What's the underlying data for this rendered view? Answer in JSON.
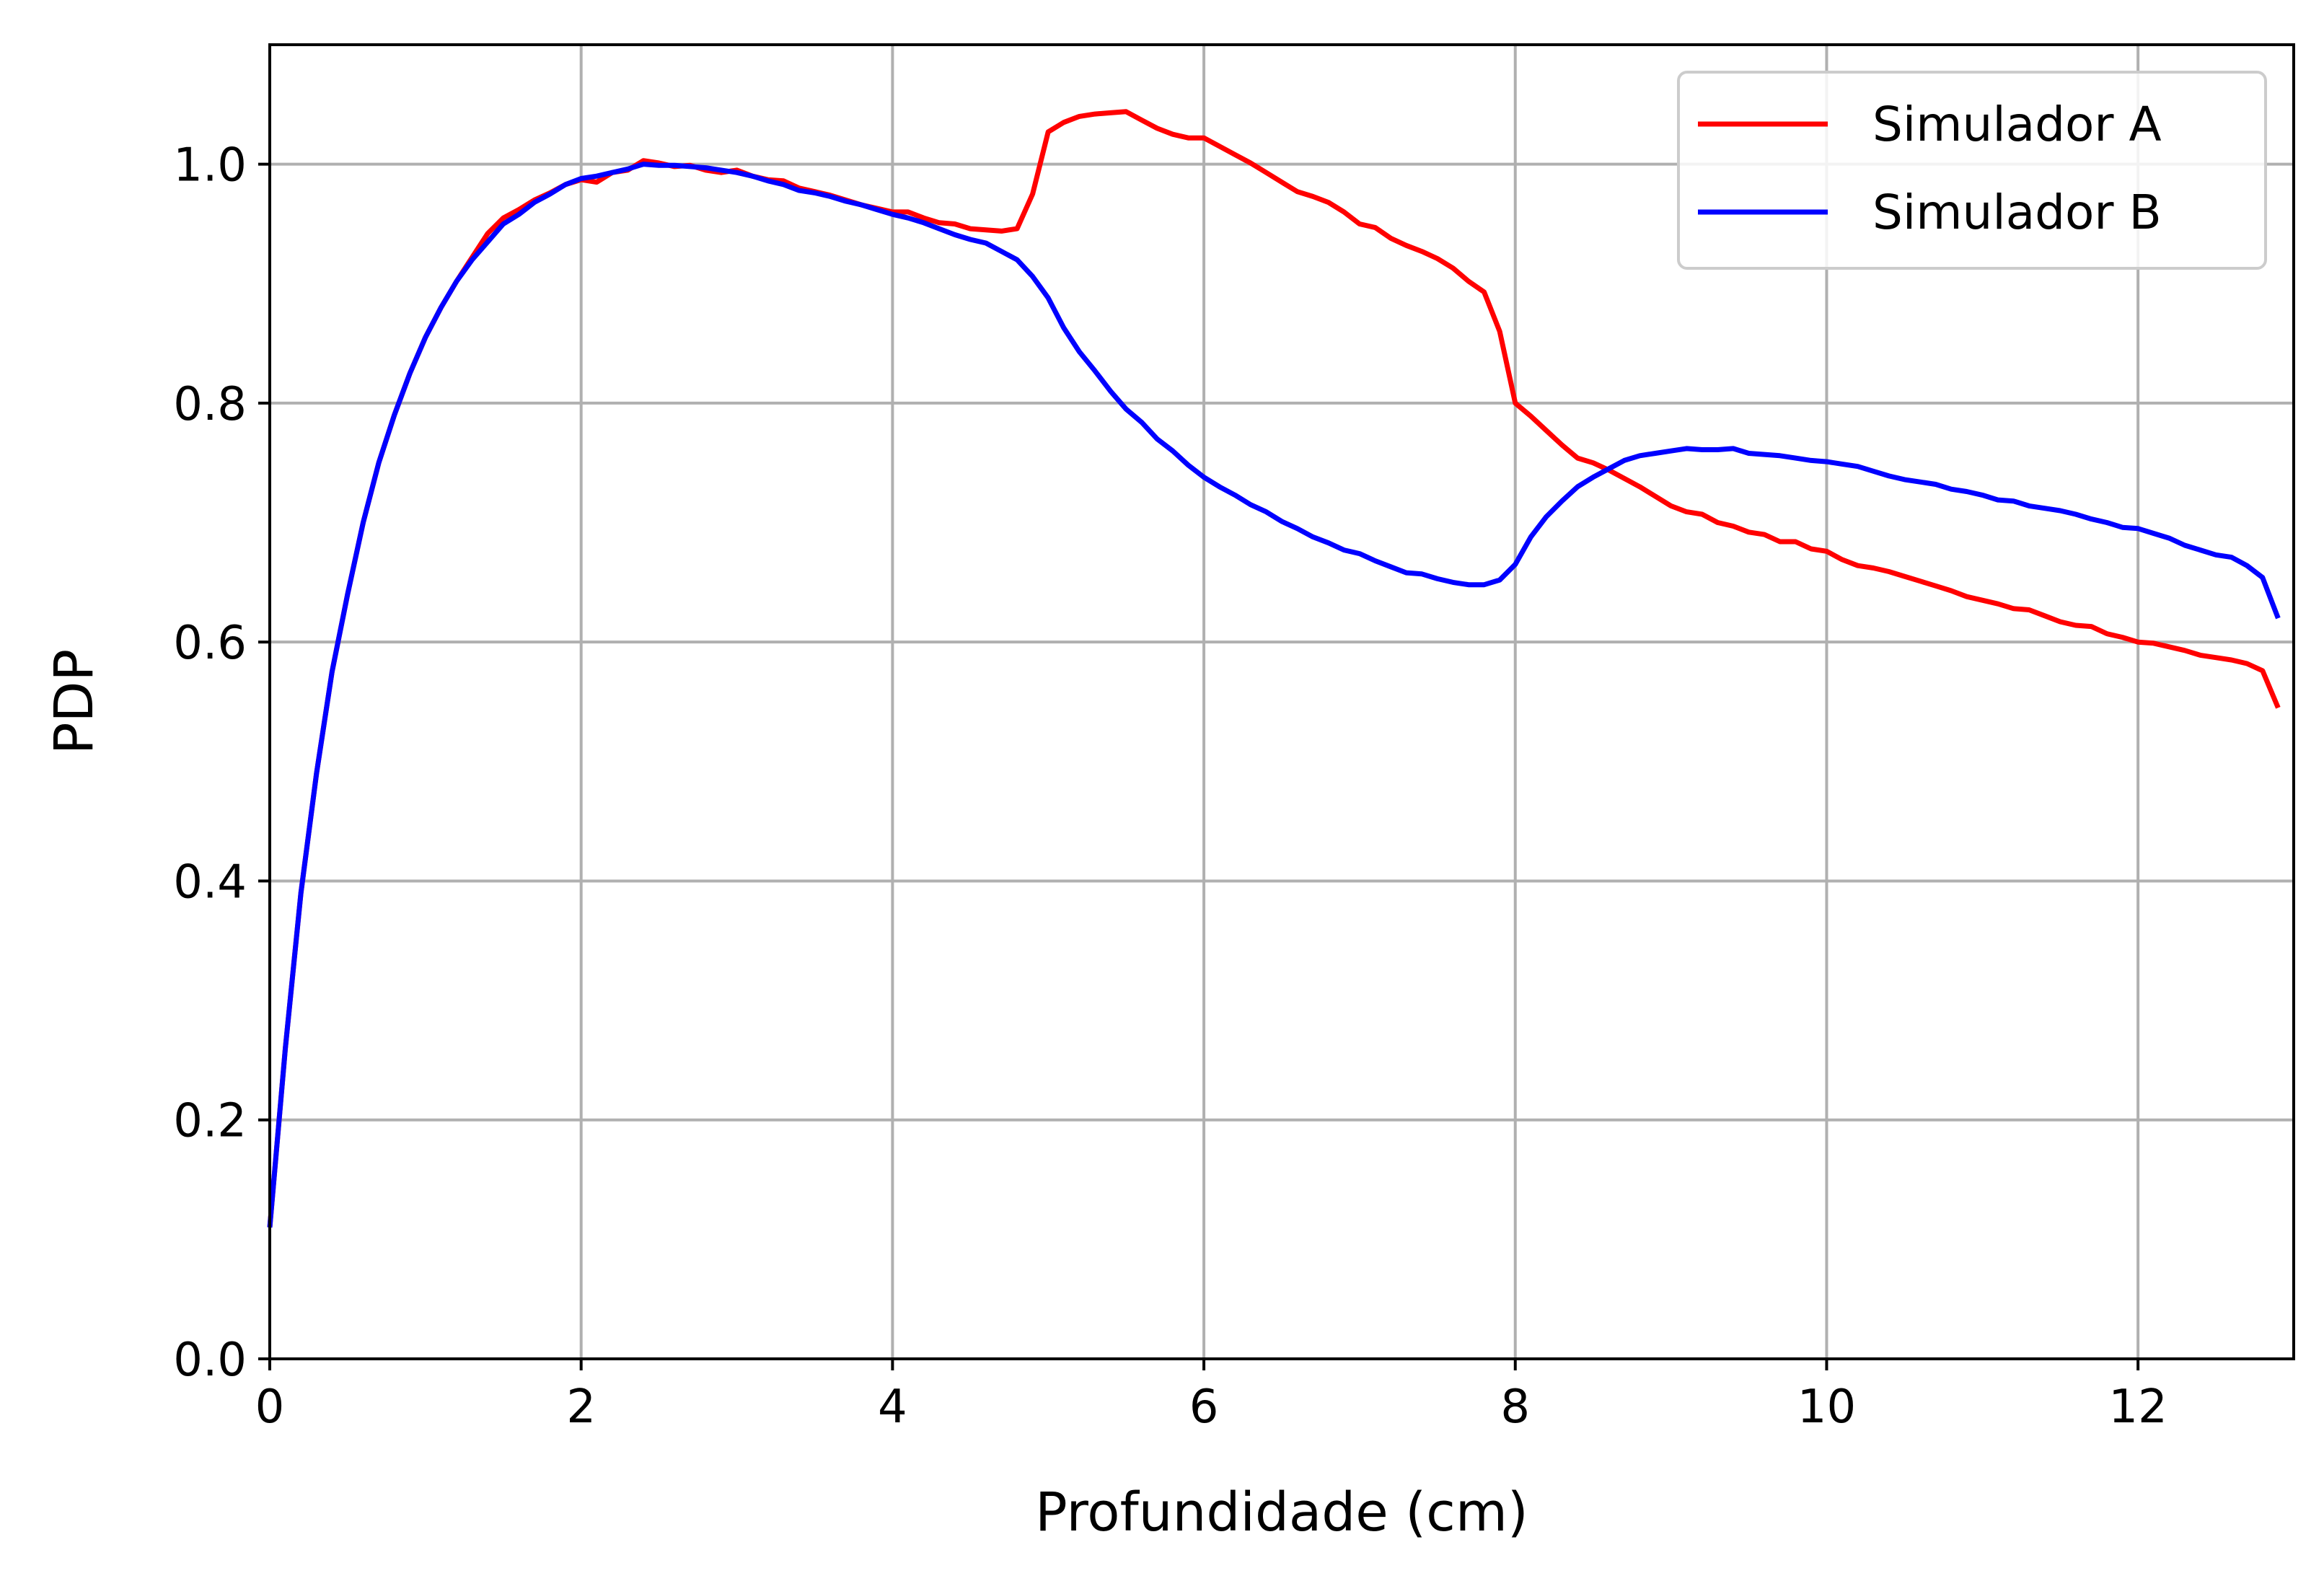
{
  "chart_data": {
    "type": "line",
    "title": "",
    "xlabel": "Profundidade (cm)",
    "ylabel": "PDP",
    "xlim": [
      0,
      13
    ],
    "ylim": [
      0,
      1.1
    ],
    "x_ticks": [
      0,
      2,
      4,
      6,
      8,
      10,
      12
    ],
    "x_tick_labels": [
      "0",
      "2",
      "4",
      "6",
      "8",
      "10",
      "12"
    ],
    "y_ticks": [
      0.0,
      0.2,
      0.4,
      0.6,
      0.8,
      1.0
    ],
    "y_tick_labels": [
      "0.0",
      "0.2",
      "0.4",
      "0.6",
      "0.8",
      "1.0"
    ],
    "grid": true,
    "legend_position": "top-right",
    "series": [
      {
        "name": "Simulador A",
        "color": "#ff0000",
        "points": [
          [
            0.0,
            0.11
          ],
          [
            0.1,
            0.26
          ],
          [
            0.2,
            0.39
          ],
          [
            0.3,
            0.49
          ],
          [
            0.4,
            0.575
          ],
          [
            0.5,
            0.64
          ],
          [
            0.6,
            0.7
          ],
          [
            0.7,
            0.75
          ],
          [
            0.8,
            0.79
          ],
          [
            0.9,
            0.825
          ],
          [
            1.0,
            0.855
          ],
          [
            1.1,
            0.88
          ],
          [
            1.2,
            0.902
          ],
          [
            1.3,
            0.922
          ],
          [
            1.4,
            0.942
          ],
          [
            1.5,
            0.955
          ],
          [
            1.6,
            0.962
          ],
          [
            1.7,
            0.97
          ],
          [
            1.8,
            0.976
          ],
          [
            1.9,
            0.983
          ],
          [
            2.0,
            0.987
          ],
          [
            2.1,
            0.985
          ],
          [
            2.2,
            0.993
          ],
          [
            2.3,
            0.995
          ],
          [
            2.4,
            1.003
          ],
          [
            2.5,
            1.001
          ],
          [
            2.6,
            0.998
          ],
          [
            2.7,
            0.999
          ],
          [
            2.8,
            0.995
          ],
          [
            2.9,
            0.993
          ],
          [
            3.0,
            0.995
          ],
          [
            3.1,
            0.99
          ],
          [
            3.2,
            0.987
          ],
          [
            3.3,
            0.986
          ],
          [
            3.4,
            0.98
          ],
          [
            3.5,
            0.977
          ],
          [
            3.6,
            0.974
          ],
          [
            3.7,
            0.97
          ],
          [
            3.8,
            0.966
          ],
          [
            3.9,
            0.963
          ],
          [
            4.0,
            0.96
          ],
          [
            4.1,
            0.96
          ],
          [
            4.2,
            0.955
          ],
          [
            4.3,
            0.951
          ],
          [
            4.4,
            0.95
          ],
          [
            4.5,
            0.946
          ],
          [
            4.6,
            0.945
          ],
          [
            4.7,
            0.944
          ],
          [
            4.8,
            0.946
          ],
          [
            4.9,
            0.975
          ],
          [
            5.0,
            1.027
          ],
          [
            5.1,
            1.035
          ],
          [
            5.2,
            1.04
          ],
          [
            5.3,
            1.042
          ],
          [
            5.4,
            1.043
          ],
          [
            5.5,
            1.044
          ],
          [
            5.6,
            1.037
          ],
          [
            5.7,
            1.03
          ],
          [
            5.8,
            1.025
          ],
          [
            5.9,
            1.022
          ],
          [
            6.0,
            1.022
          ],
          [
            6.1,
            1.015
          ],
          [
            6.2,
            1.008
          ],
          [
            6.3,
            1.001
          ],
          [
            6.4,
            0.993
          ],
          [
            6.5,
            0.985
          ],
          [
            6.6,
            0.977
          ],
          [
            6.7,
            0.973
          ],
          [
            6.8,
            0.968
          ],
          [
            6.9,
            0.96
          ],
          [
            7.0,
            0.95
          ],
          [
            7.1,
            0.947
          ],
          [
            7.2,
            0.938
          ],
          [
            7.3,
            0.932
          ],
          [
            7.4,
            0.927
          ],
          [
            7.5,
            0.921
          ],
          [
            7.6,
            0.913
          ],
          [
            7.7,
            0.902
          ],
          [
            7.8,
            0.893
          ],
          [
            7.9,
            0.86
          ],
          [
            8.0,
            0.8
          ],
          [
            8.1,
            0.789
          ],
          [
            8.2,
            0.777
          ],
          [
            8.3,
            0.765
          ],
          [
            8.4,
            0.754
          ],
          [
            8.5,
            0.75
          ],
          [
            8.6,
            0.744
          ],
          [
            8.7,
            0.737
          ],
          [
            8.8,
            0.73
          ],
          [
            8.9,
            0.722
          ],
          [
            9.0,
            0.714
          ],
          [
            9.1,
            0.709
          ],
          [
            9.2,
            0.707
          ],
          [
            9.3,
            0.7
          ],
          [
            9.4,
            0.697
          ],
          [
            9.5,
            0.692
          ],
          [
            9.6,
            0.69
          ],
          [
            9.7,
            0.684
          ],
          [
            9.8,
            0.684
          ],
          [
            9.9,
            0.678
          ],
          [
            10.0,
            0.676
          ],
          [
            10.1,
            0.669
          ],
          [
            10.2,
            0.664
          ],
          [
            10.3,
            0.662
          ],
          [
            10.4,
            0.659
          ],
          [
            10.5,
            0.655
          ],
          [
            10.6,
            0.651
          ],
          [
            10.7,
            0.647
          ],
          [
            10.8,
            0.643
          ],
          [
            10.9,
            0.638
          ],
          [
            11.0,
            0.635
          ],
          [
            11.1,
            0.632
          ],
          [
            11.2,
            0.628
          ],
          [
            11.3,
            0.627
          ],
          [
            11.4,
            0.622
          ],
          [
            11.5,
            0.617
          ],
          [
            11.6,
            0.614
          ],
          [
            11.7,
            0.613
          ],
          [
            11.8,
            0.607
          ],
          [
            11.9,
            0.604
          ],
          [
            12.0,
            0.6
          ],
          [
            12.1,
            0.599
          ],
          [
            12.2,
            0.596
          ],
          [
            12.3,
            0.593
          ],
          [
            12.4,
            0.589
          ],
          [
            12.5,
            0.587
          ],
          [
            12.6,
            0.585
          ],
          [
            12.7,
            0.582
          ],
          [
            12.8,
            0.576
          ],
          [
            12.9,
            0.545
          ]
        ]
      },
      {
        "name": "Simulador B",
        "color": "#0000ff",
        "points": [
          [
            0.0,
            0.11
          ],
          [
            0.1,
            0.26
          ],
          [
            0.2,
            0.39
          ],
          [
            0.3,
            0.49
          ],
          [
            0.4,
            0.575
          ],
          [
            0.5,
            0.64
          ],
          [
            0.6,
            0.7
          ],
          [
            0.7,
            0.75
          ],
          [
            0.8,
            0.79
          ],
          [
            0.9,
            0.825
          ],
          [
            1.0,
            0.855
          ],
          [
            1.1,
            0.88
          ],
          [
            1.2,
            0.902
          ],
          [
            1.3,
            0.92
          ],
          [
            1.4,
            0.935
          ],
          [
            1.5,
            0.95
          ],
          [
            1.6,
            0.958
          ],
          [
            1.7,
            0.968
          ],
          [
            1.8,
            0.975
          ],
          [
            1.9,
            0.983
          ],
          [
            2.0,
            0.988
          ],
          [
            2.1,
            0.99
          ],
          [
            2.2,
            0.993
          ],
          [
            2.3,
            0.996
          ],
          [
            2.4,
            1.0
          ],
          [
            2.5,
            0.999
          ],
          [
            2.6,
            0.999
          ],
          [
            2.7,
            0.998
          ],
          [
            2.8,
            0.997
          ],
          [
            2.9,
            0.995
          ],
          [
            3.0,
            0.993
          ],
          [
            3.1,
            0.99
          ],
          [
            3.2,
            0.986
          ],
          [
            3.3,
            0.983
          ],
          [
            3.4,
            0.978
          ],
          [
            3.5,
            0.976
          ],
          [
            3.6,
            0.973
          ],
          [
            3.7,
            0.969
          ],
          [
            3.8,
            0.966
          ],
          [
            3.9,
            0.962
          ],
          [
            4.0,
            0.958
          ],
          [
            4.1,
            0.955
          ],
          [
            4.2,
            0.951
          ],
          [
            4.3,
            0.946
          ],
          [
            4.4,
            0.941
          ],
          [
            4.5,
            0.937
          ],
          [
            4.6,
            0.934
          ],
          [
            4.7,
            0.927
          ],
          [
            4.8,
            0.92
          ],
          [
            4.9,
            0.906
          ],
          [
            5.0,
            0.888
          ],
          [
            5.1,
            0.863
          ],
          [
            5.2,
            0.843
          ],
          [
            5.3,
            0.827
          ],
          [
            5.4,
            0.81
          ],
          [
            5.5,
            0.795
          ],
          [
            5.6,
            0.784
          ],
          [
            5.7,
            0.77
          ],
          [
            5.8,
            0.76
          ],
          [
            5.9,
            0.748
          ],
          [
            6.0,
            0.738
          ],
          [
            6.1,
            0.73
          ],
          [
            6.2,
            0.723
          ],
          [
            6.3,
            0.715
          ],
          [
            6.4,
            0.709
          ],
          [
            6.5,
            0.701
          ],
          [
            6.6,
            0.695
          ],
          [
            6.7,
            0.688
          ],
          [
            6.8,
            0.683
          ],
          [
            6.9,
            0.677
          ],
          [
            7.0,
            0.674
          ],
          [
            7.1,
            0.668
          ],
          [
            7.2,
            0.663
          ],
          [
            7.3,
            0.658
          ],
          [
            7.4,
            0.657
          ],
          [
            7.5,
            0.653
          ],
          [
            7.6,
            0.65
          ],
          [
            7.7,
            0.648
          ],
          [
            7.8,
            0.648
          ],
          [
            7.9,
            0.652
          ],
          [
            8.0,
            0.665
          ],
          [
            8.1,
            0.688
          ],
          [
            8.2,
            0.705
          ],
          [
            8.3,
            0.718
          ],
          [
            8.4,
            0.73
          ],
          [
            8.5,
            0.738
          ],
          [
            8.6,
            0.745
          ],
          [
            8.7,
            0.752
          ],
          [
            8.8,
            0.756
          ],
          [
            8.9,
            0.758
          ],
          [
            9.0,
            0.76
          ],
          [
            9.1,
            0.762
          ],
          [
            9.2,
            0.761
          ],
          [
            9.3,
            0.761
          ],
          [
            9.4,
            0.762
          ],
          [
            9.5,
            0.758
          ],
          [
            9.6,
            0.757
          ],
          [
            9.7,
            0.756
          ],
          [
            9.8,
            0.754
          ],
          [
            9.9,
            0.752
          ],
          [
            10.0,
            0.751
          ],
          [
            10.1,
            0.749
          ],
          [
            10.2,
            0.747
          ],
          [
            10.3,
            0.743
          ],
          [
            10.4,
            0.739
          ],
          [
            10.5,
            0.736
          ],
          [
            10.6,
            0.734
          ],
          [
            10.7,
            0.732
          ],
          [
            10.8,
            0.728
          ],
          [
            10.9,
            0.726
          ],
          [
            11.0,
            0.723
          ],
          [
            11.1,
            0.719
          ],
          [
            11.2,
            0.718
          ],
          [
            11.3,
            0.714
          ],
          [
            11.4,
            0.712
          ],
          [
            11.5,
            0.71
          ],
          [
            11.6,
            0.707
          ],
          [
            11.7,
            0.703
          ],
          [
            11.8,
            0.7
          ],
          [
            11.9,
            0.696
          ],
          [
            12.0,
            0.695
          ],
          [
            12.1,
            0.691
          ],
          [
            12.2,
            0.687
          ],
          [
            12.3,
            0.681
          ],
          [
            12.4,
            0.677
          ],
          [
            12.5,
            0.673
          ],
          [
            12.6,
            0.671
          ],
          [
            12.7,
            0.664
          ],
          [
            12.8,
            0.654
          ],
          [
            12.9,
            0.62
          ]
        ]
      }
    ]
  }
}
